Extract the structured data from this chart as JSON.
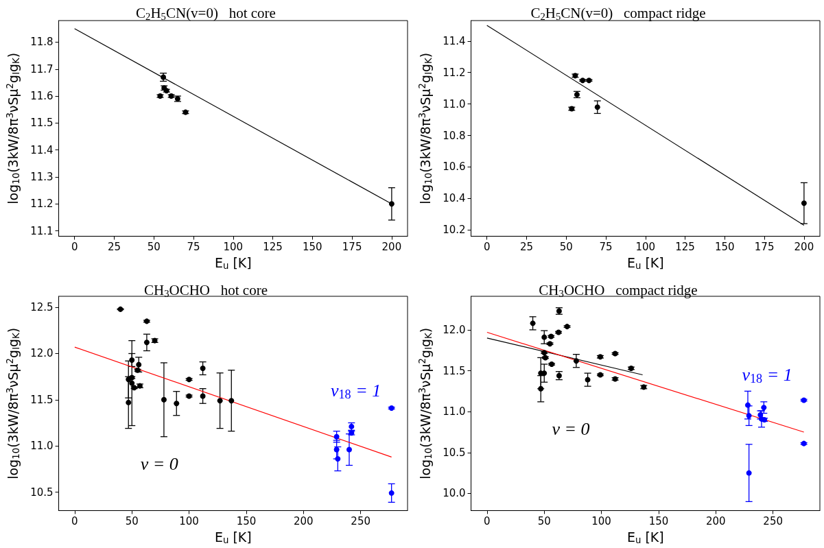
{
  "chart_data": [
    {
      "type": "scatter",
      "title": "C$_{2}$H$_{5}$CN(v=0)   hot core",
      "xlabel": "E$_{u}$ [K]",
      "ylabel": "log$_{10}$(3kW/8π$^{3}$νSμ$^{2}$g$_{I}$g$_{K}$)",
      "xlim": [
        -10,
        210
      ],
      "ylim": [
        11.08,
        11.88
      ],
      "xticks": [
        0,
        25,
        50,
        75,
        100,
        125,
        150,
        175,
        200
      ],
      "yticks": [
        11.1,
        11.2,
        11.3,
        11.4,
        11.5,
        11.6,
        11.7,
        11.8
      ],
      "marker": "circle",
      "grid": false,
      "series": [
        {
          "color": "#000000",
          "x": [
            54,
            56,
            56.5,
            58,
            61,
            65,
            70,
            200
          ],
          "values": [
            11.6,
            11.67,
            11.63,
            11.62,
            11.6,
            11.59,
            11.54,
            11.2
          ],
          "errors": [
            0.005,
            0.015,
            0.008,
            0.005,
            0.005,
            0.01,
            0.005,
            0.06
          ]
        },
        {
          "type": "line",
          "color": "#000000",
          "marker": "none",
          "x": [
            0,
            200
          ],
          "values": [
            11.85,
            11.2
          ]
        }
      ]
    },
    {
      "type": "scatter",
      "title": "C$_{2}$H$_{5}$CN(v=0)   compact ridge",
      "xlabel": "E$_{u}$ [K]",
      "ylabel": "log$_{10}$(3kW/8π$^{3}$νSμ$^{2}$g$_{I}$g$_{K}$)",
      "xlim": [
        -10,
        210
      ],
      "ylim": [
        10.16,
        11.53
      ],
      "xticks": [
        0,
        25,
        50,
        75,
        100,
        125,
        150,
        175,
        200
      ],
      "yticks": [
        10.2,
        10.4,
        10.6,
        10.8,
        {
          "value": 11,
          "label": "11.0"
        },
        11.2,
        11.4
      ],
      "marker": "circle",
      "grid": false,
      "series": [
        {
          "color": "#000000",
          "x": [
            53.5,
            55.7,
            56.8,
            60.4,
            64.4,
            69.7,
            200
          ],
          "values": [
            10.97,
            11.18,
            11.06,
            11.15,
            11.15,
            10.98,
            10.37
          ],
          "errors": [
            0.01,
            0.01,
            0.02,
            0.005,
            0.005,
            0.04,
            0.13
          ]
        },
        {
          "type": "line",
          "color": "#000000",
          "marker": "none",
          "x": [
            0,
            200
          ],
          "values": [
            11.5,
            10.23
          ]
        }
      ]
    },
    {
      "type": "scatter",
      "title": "CH$_{3}$OCHO   hot core",
      "xlabel": "E$_{u}$ [K]",
      "ylabel": "log$_{10}$(3kW/8π$^{3}$νSμ$^{2}$g$_{I}$g$_{K}$)",
      "xlim": [
        -14,
        291
      ],
      "ylim": [
        10.3,
        12.62
      ],
      "xticks": [
        0,
        50,
        100,
        150,
        200,
        250
      ],
      "yticks": [
        10.5,
        {
          "value": 11,
          "label": "11.0"
        },
        11.5,
        {
          "value": 12,
          "label": "12.0"
        },
        12.5
      ],
      "marker": "circle",
      "grid": false,
      "series": [
        {
          "name": "v = 0",
          "color": "#000000",
          "x": [
            40,
            63,
            63,
            70,
            50,
            50,
            47,
            47,
            56,
            55,
            50,
            52,
            57,
            78,
            89,
            100,
            100,
            112,
            112,
            127,
            137
          ],
          "values": [
            12.48,
            12.35,
            12.12,
            12.14,
            11.93,
            11.68,
            11.72,
            11.47,
            11.88,
            11.82,
            11.74,
            11.63,
            11.65,
            11.5,
            11.46,
            11.72,
            11.54,
            11.84,
            11.54,
            11.49,
            11.49
          ],
          "errors": [
            0.005,
            0.01,
            0.09,
            0.02,
            0.07,
            0.46,
            0.2,
            0.28,
            0.08,
            0.01,
            0.01,
            0.01,
            0.02,
            0.4,
            0.13,
            0.01,
            0.01,
            0.07,
            0.08,
            0.3,
            0.33
          ]
        },
        {
          "name": "v$_{18}$ = 1",
          "color": "#0000ff",
          "x": [
            229,
            229,
            230,
            242,
            242,
            240,
            277,
            277
          ],
          "values": [
            11.1,
            10.96,
            10.86,
            11.21,
            11.14,
            10.96,
            11.41,
            10.49
          ],
          "errors": [
            0.06,
            0.1,
            0.13,
            0.04,
            0.02,
            0.17,
            0.01,
            0.1
          ]
        },
        {
          "type": "line",
          "color": "#ff0000",
          "marker": "none",
          "x": [
            0,
            277
          ],
          "values": [
            12.07,
            10.88
          ]
        }
      ]
    },
    {
      "type": "scatter",
      "title": "CH$_{3}$OCHO   compact ridge",
      "xlabel": "E$_{u}$ [K]",
      "ylabel": "log$_{10}$(3kW/8π$^{3}$νSμ$^{2}$g$_{I}$g$_{K}$)",
      "xlim": [
        -14,
        291
      ],
      "ylim": [
        9.79,
        12.41
      ],
      "xticks": [
        0,
        50,
        100,
        150,
        200,
        250
      ],
      "yticks": [
        {
          "value": 10,
          "label": "10.0"
        },
        10.5,
        {
          "value": 11,
          "label": "11.0"
        },
        11.5,
        {
          "value": 12,
          "label": "12.0"
        }
      ],
      "marker": "circle",
      "grid": false,
      "series": [
        {
          "name": "v = 0",
          "color": "#000000",
          "x": [
            40,
            63,
            50,
            56,
            62.5,
            70,
            55,
            50,
            51,
            56.5,
            47,
            50,
            47,
            63,
            78,
            88,
            99,
            99,
            112,
            112,
            126,
            137
          ],
          "values": [
            12.08,
            12.23,
            11.91,
            11.92,
            11.97,
            12.04,
            11.83,
            11.72,
            11.66,
            11.58,
            11.47,
            11.47,
            11.28,
            11.44,
            11.62,
            11.39,
            11.67,
            11.45,
            11.71,
            11.4,
            11.53,
            11.3
          ],
          "errors": [
            0.08,
            0.04,
            0.08,
            0.01,
            0.01,
            0.01,
            0.01,
            0.01,
            0.01,
            0.01,
            0.19,
            0.11,
            0.16,
            0.05,
            0.08,
            0.08,
            0.015,
            0.01,
            0.01,
            0.015,
            0.015,
            0.02
          ]
        },
        {
          "name": "v$_{18}$ = 1",
          "color": "#0000ff",
          "x": [
            228,
            229,
            229,
            239,
            242,
            240,
            242.5,
            277,
            277
          ],
          "values": [
            11.08,
            10.95,
            10.25,
            10.96,
            11.05,
            10.91,
            10.9,
            11.14,
            10.61
          ],
          "errors": [
            0.17,
            0.12,
            0.35,
            0.05,
            0.07,
            0.1,
            0.02,
            0.01,
            0.01
          ]
        },
        {
          "type": "line",
          "color": "#000000",
          "marker": "none",
          "x": [
            0,
            136
          ],
          "values": [
            11.9,
            11.45
          ]
        },
        {
          "type": "line",
          "color": "#ff0000",
          "marker": "none",
          "x": [
            0,
            277
          ],
          "values": [
            11.97,
            10.75
          ]
        }
      ]
    }
  ]
}
